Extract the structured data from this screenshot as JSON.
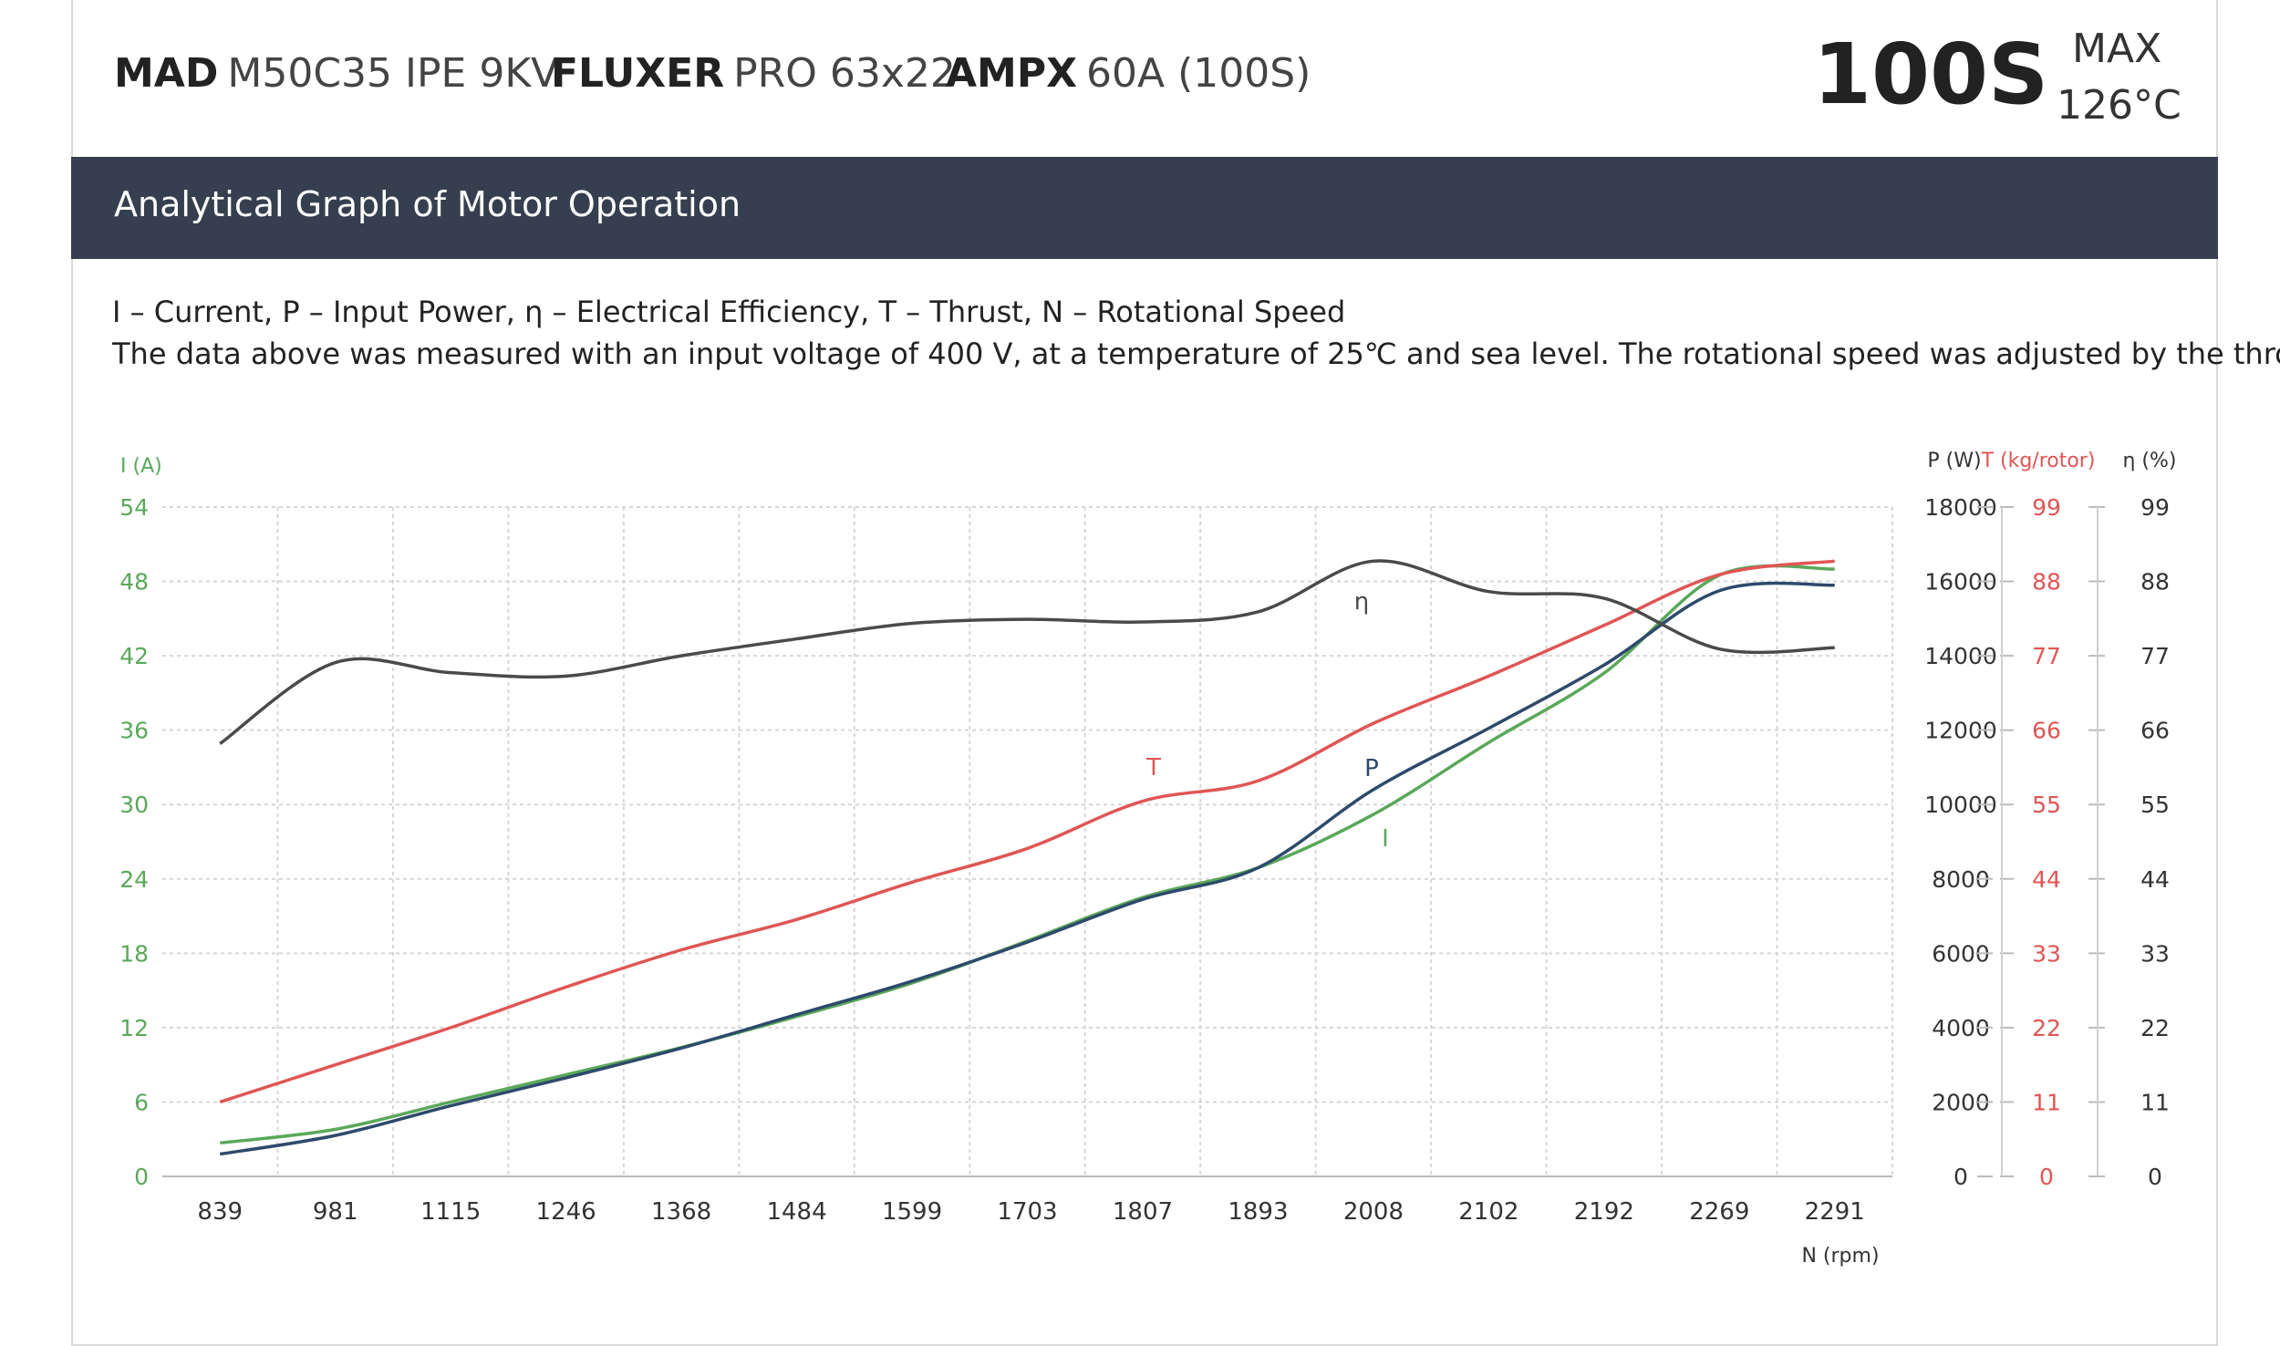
{
  "header": {
    "motor_brand": "MAD",
    "motor_model": "M50C35 IPE 9KV",
    "prop_brand": "FLUXER",
    "prop_model": "PRO 63x22",
    "esc_brand": "AMPX",
    "esc_model": "60A (100S)",
    "voltage_badge": "100S",
    "max_label": "MAX",
    "max_temp": "126°C"
  },
  "section_title": "Analytical Graph of Motor Operation",
  "notes": {
    "legend": "I – Current, P – Input Power, η – Electrical Efficiency, T – Thrust,   N – Rotational Speed",
    "conditions": "The data above was measured with an input voltage of 400 V, at a temperature of 25℃ and sea level. The rotational speed was adjusted by the throttle."
  },
  "colors": {
    "current": "#5aa85a",
    "power": "#2d4a6b",
    "thrust": "#e05555",
    "efficiency": "#4a4a4a",
    "grid": "#d6d6d6",
    "axis_text": "#333333"
  },
  "chart_data": {
    "type": "line",
    "x": [
      "839",
      "981",
      "1115",
      "1246",
      "1368",
      "1484",
      "1599",
      "1703",
      "1807",
      "1893",
      "2008",
      "2102",
      "2192",
      "2269",
      "2291"
    ],
    "xlabel": "N (rpm)",
    "axes": {
      "current": {
        "label": "I (A)",
        "ticks": [
          "0",
          "6",
          "12",
          "18",
          "24",
          "30",
          "36",
          "42",
          "48",
          "54"
        ],
        "ylim": [
          0,
          54
        ]
      },
      "power": {
        "label": "P (W)",
        "ticks": [
          "0",
          "2000",
          "4000",
          "6000",
          "8000",
          "10000",
          "12000",
          "14000",
          "16000",
          "18000"
        ],
        "ylim": [
          0,
          18000
        ]
      },
      "thrust": {
        "label": "T (kg/rotor)",
        "ticks": [
          "0",
          "11",
          "22",
          "33",
          "44",
          "55",
          "66",
          "77",
          "88",
          "99"
        ],
        "ylim": [
          0,
          99
        ]
      },
      "efficiency": {
        "label": "η (%)",
        "ticks": [
          "0",
          "11",
          "22",
          "33",
          "44",
          "55",
          "66",
          "77",
          "88",
          "99"
        ],
        "ylim": [
          0,
          99
        ]
      }
    },
    "grid": true,
    "series": [
      {
        "name": "I",
        "axis": "current",
        "values": [
          2.7,
          3.8,
          6.0,
          8.2,
          10.4,
          12.9,
          15.6,
          19.0,
          22.5,
          24.9,
          29.2,
          35.0,
          40.6,
          48.5,
          49.0
        ]
      },
      {
        "name": "P",
        "axis": "power",
        "values": [
          600,
          1100,
          1900,
          2650,
          3450,
          4350,
          5250,
          6300,
          7450,
          8300,
          10400,
          12050,
          13750,
          15750,
          15900
        ]
      },
      {
        "name": "T",
        "axis": "thrust",
        "values": [
          11.0,
          16.5,
          22.0,
          28.0,
          33.5,
          38.0,
          43.5,
          48.5,
          55.5,
          58.5,
          67.0,
          74.0,
          81.5,
          89.0,
          91.0
        ]
      },
      {
        "name": "η",
        "axis": "efficiency",
        "values": [
          64.0,
          76.0,
          74.5,
          74.0,
          77.0,
          79.5,
          81.8,
          82.4,
          82.0,
          83.5,
          91.0,
          86.5,
          85.5,
          78.0,
          78.2
        ]
      }
    ]
  }
}
